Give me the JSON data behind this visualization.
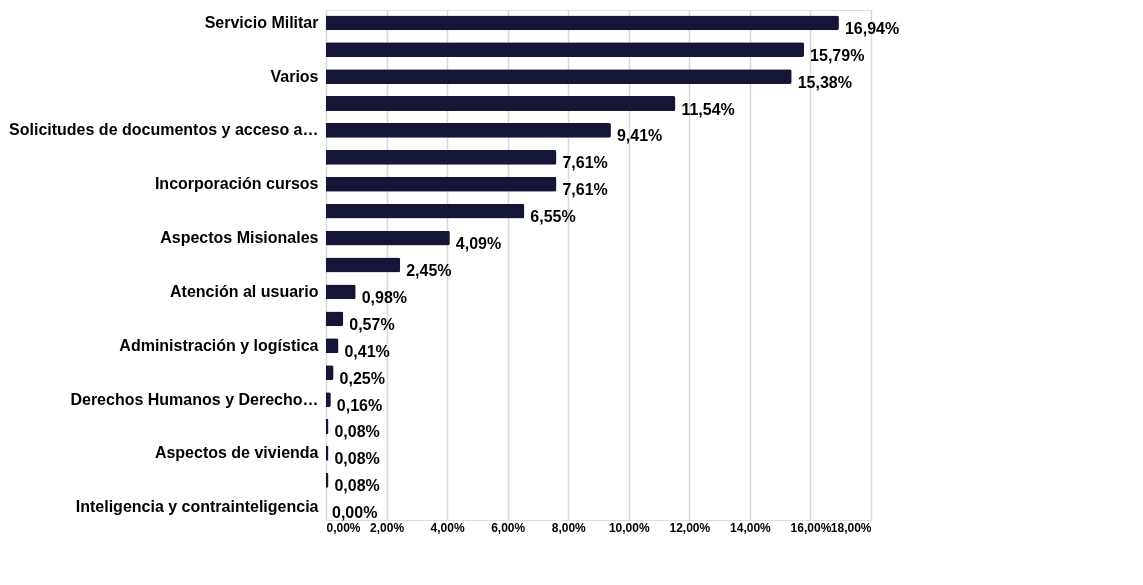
{
  "chart_data": {
    "type": "bar",
    "orientation": "horizontal",
    "categories": [
      "Servicio Militar",
      null,
      "Varios",
      null,
      "Solicitudes de documentos y acceso a…",
      null,
      "Incorporación cursos",
      null,
      "Aspectos Misionales",
      null,
      "Atención al usuario",
      null,
      "Administración y logística",
      null,
      "Derechos Humanos y Derecho…",
      null,
      "Aspectos de vivienda",
      null,
      "Inteligencia y contrainteligencia"
    ],
    "values": [
      16.94,
      15.79,
      15.38,
      11.54,
      9.41,
      7.61,
      7.61,
      6.55,
      4.09,
      2.45,
      0.98,
      0.57,
      0.41,
      0.25,
      0.16,
      0.08,
      0.08,
      0.08,
      0.0
    ],
    "value_labels": [
      "16,94%",
      "15,79%",
      "15,38%",
      "11,54%",
      "9,41%",
      "7,61%",
      "7,61%",
      "6,55%",
      "4,09%",
      "2,45%",
      "0,98%",
      "0,57%",
      "0,41%",
      "0,25%",
      "0,16%",
      "0,08%",
      "0,08%",
      "0,08%",
      "0,00%"
    ],
    "color": "#151538",
    "xlim": [
      0,
      18
    ],
    "xticks": [
      {
        "value": 0,
        "label": "0,00%"
      },
      {
        "value": 2,
        "label": "2,00%"
      },
      {
        "value": 4,
        "label": "4,00%"
      },
      {
        "value": 6,
        "label": "6,00%"
      },
      {
        "value": 8,
        "label": "8,00%"
      },
      {
        "value": 10,
        "label": "10,00%"
      },
      {
        "value": 12,
        "label": "12,00%"
      },
      {
        "value": 14,
        "label": "14,00%"
      },
      {
        "value": 16,
        "label": "16,00%"
      },
      {
        "value": 18,
        "label": "18,00%"
      }
    ],
    "grid": "x"
  }
}
